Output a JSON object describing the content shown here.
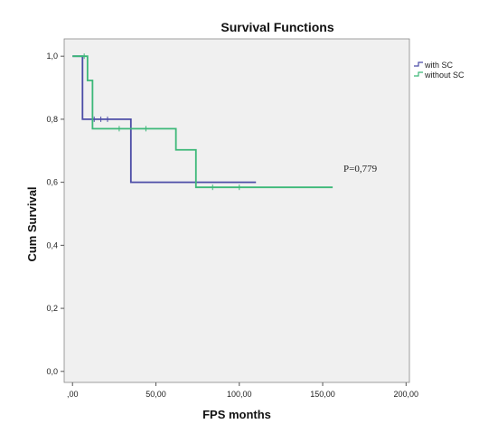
{
  "chart_data": {
    "type": "line",
    "title": "Survival Functions",
    "xlabel": "FPS months",
    "ylabel": "Cum Survival",
    "xlim": [
      -5,
      202
    ],
    "ylim": [
      -0.035,
      1.055
    ],
    "xticks": [
      0,
      50,
      100,
      150,
      200
    ],
    "xtick_labels": [
      ",00",
      "50,00",
      "100,00",
      "150,00",
      "200,00"
    ],
    "yticks": [
      0.0,
      0.2,
      0.4,
      0.6,
      0.8,
      1.0
    ],
    "ytick_labels": [
      "0,0",
      "0,2",
      "0,4",
      "0,6",
      "0,8",
      "1,0"
    ],
    "grid": false,
    "legend_position": "right-top, outside plot",
    "annotation": "P=0,779",
    "background_color": "#f0f0f0",
    "series": [
      {
        "name": "with SC",
        "color": "#4b4ca6",
        "steps": [
          {
            "x": 0,
            "y": 1.0
          },
          {
            "x": 6,
            "y": 0.8
          },
          {
            "x": 35,
            "y": 0.6
          },
          {
            "x": 110,
            "y": 0.6
          }
        ],
        "censored": [
          {
            "x": 13,
            "y": 0.8
          },
          {
            "x": 17,
            "y": 0.8
          },
          {
            "x": 21,
            "y": 0.8
          }
        ]
      },
      {
        "name": "without SC",
        "color": "#3cb878",
        "steps": [
          {
            "x": 0,
            "y": 1.0
          },
          {
            "x": 9,
            "y": 0.923
          },
          {
            "x": 12,
            "y": 0.77
          },
          {
            "x": 62,
            "y": 0.703
          },
          {
            "x": 74,
            "y": 0.584
          },
          {
            "x": 156,
            "y": 0.584
          }
        ],
        "censored": [
          {
            "x": 7,
            "y": 1.0
          },
          {
            "x": 28,
            "y": 0.77
          },
          {
            "x": 44,
            "y": 0.77
          },
          {
            "x": 84,
            "y": 0.584
          },
          {
            "x": 100,
            "y": 0.584
          }
        ]
      }
    ]
  }
}
